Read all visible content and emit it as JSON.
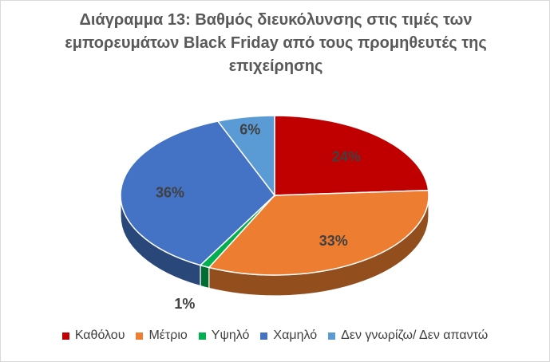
{
  "chart_data": {
    "type": "pie",
    "title": "Διάγραμμα 13: Βαθμός διευκόλυνσης στις τιμές των εμπορευμάτων Black Friday από τους προμηθευτές της επιχείρησης",
    "categories": [
      "Καθόλου",
      "Μέτριο",
      "Υψηλό",
      "Χαμηλό",
      "Δεν γνωρίζω/ Δεν απαντώ"
    ],
    "values": [
      24,
      33,
      1,
      36,
      6
    ],
    "data_labels": [
      "24%",
      "33%",
      "1%",
      "36%",
      "6%"
    ],
    "colors": [
      "#c00000",
      "#ed7d31",
      "#00b050",
      "#4472c4",
      "#5b9bd5"
    ],
    "legend_position": "bottom",
    "style": "3d"
  }
}
